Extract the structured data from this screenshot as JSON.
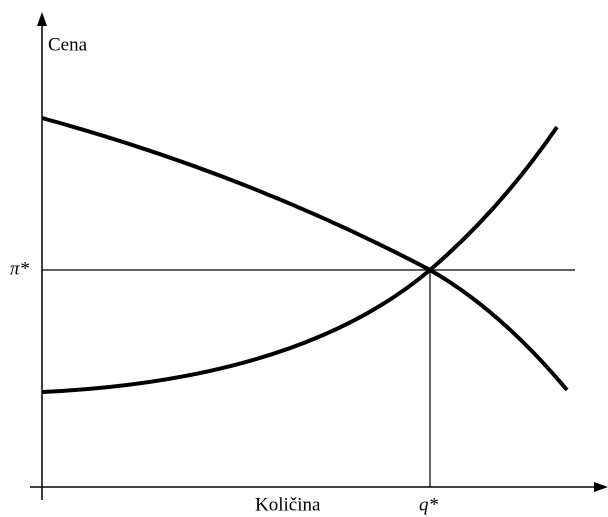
{
  "axes": {
    "y_label": "Cena",
    "x_label": "Količina"
  },
  "equilibrium": {
    "price_label": "π*",
    "quantity_label": "q*"
  }
}
